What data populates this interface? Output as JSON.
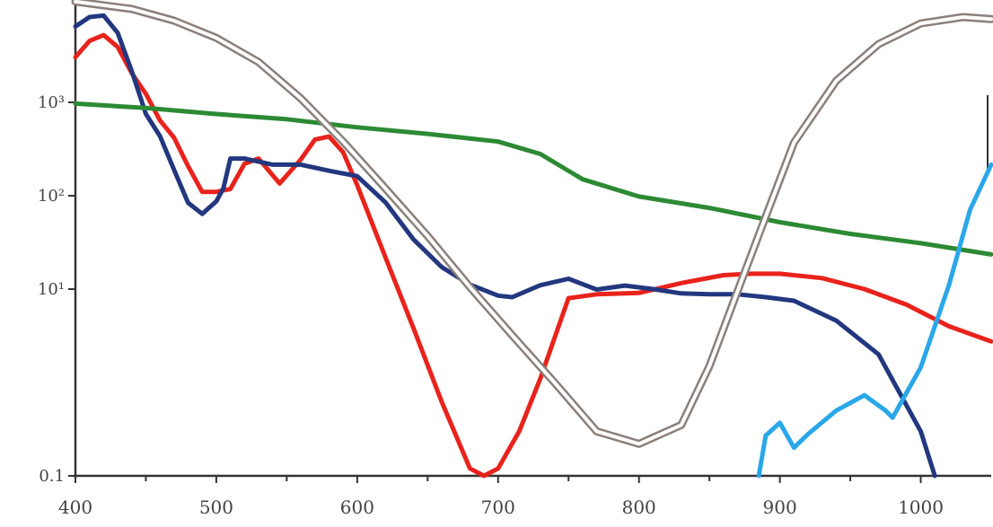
{
  "chart_data": {
    "type": "line",
    "title": "",
    "xlabel": "",
    "ylabel": "",
    "x_scale": "linear",
    "y_scale": "log",
    "xlim": [
      400,
      1050
    ],
    "ylim": [
      0.1,
      10000
    ],
    "x_ticks": [
      {
        "value": 400,
        "label": "400"
      },
      {
        "value": 500,
        "label": "500"
      },
      {
        "value": 600,
        "label": "600"
      },
      {
        "value": 700,
        "label": "700"
      },
      {
        "value": 800,
        "label": "800"
      },
      {
        "value": 900,
        "label": "900"
      },
      {
        "value": 1000,
        "label": "1000"
      }
    ],
    "y_ticks": [
      {
        "value": 0.1,
        "label": "0.1"
      },
      {
        "value": 10,
        "label": "10¹"
      },
      {
        "value": 100,
        "label": "10²"
      },
      {
        "value": 1000,
        "label": "10³"
      }
    ],
    "grid": false,
    "legend": "none",
    "series": [
      {
        "color": "#e8231c",
        "style": "solid",
        "points": [
          [
            400,
            3050
          ],
          [
            410,
            4550
          ],
          [
            420,
            5250
          ],
          [
            430,
            3920
          ],
          [
            440,
            2050
          ],
          [
            450,
            1230
          ],
          [
            460,
            640
          ],
          [
            470,
            420
          ],
          [
            480,
            207
          ],
          [
            490,
            110
          ],
          [
            500,
            110
          ],
          [
            510,
            118
          ],
          [
            520,
            220
          ],
          [
            530,
            250
          ],
          [
            545,
            135
          ],
          [
            560,
            245
          ],
          [
            570,
            400
          ],
          [
            580,
            430
          ],
          [
            590,
            292
          ],
          [
            600,
            130
          ],
          [
            620,
            22
          ],
          [
            640,
            3.8
          ],
          [
            660,
            0.62
          ],
          [
            680,
            0.12
          ],
          [
            690,
            0.1
          ],
          [
            700,
            0.12
          ],
          [
            715,
            0.3
          ],
          [
            730,
            1.1
          ],
          [
            750,
            8.0
          ],
          [
            770,
            8.8
          ],
          [
            800,
            9.1
          ],
          [
            830,
            11.6
          ],
          [
            860,
            14.1
          ],
          [
            880,
            14.6
          ],
          [
            900,
            14.6
          ],
          [
            930,
            13.1
          ],
          [
            960,
            10.0
          ],
          [
            990,
            6.8
          ],
          [
            1020,
            4.0
          ],
          [
            1050,
            2.75
          ]
        ]
      },
      {
        "color": "#23377f",
        "style": "solid",
        "points": [
          [
            400,
            6500
          ],
          [
            410,
            8200
          ],
          [
            420,
            8500
          ],
          [
            430,
            5550
          ],
          [
            440,
            2150
          ],
          [
            450,
            750
          ],
          [
            460,
            435
          ],
          [
            470,
            190
          ],
          [
            480,
            84
          ],
          [
            490,
            64
          ],
          [
            500,
            87
          ],
          [
            505,
            120
          ],
          [
            510,
            250
          ],
          [
            520,
            250
          ],
          [
            540,
            215
          ],
          [
            560,
            215
          ],
          [
            580,
            185
          ],
          [
            600,
            162
          ],
          [
            620,
            85
          ],
          [
            640,
            34
          ],
          [
            660,
            17.2
          ],
          [
            680,
            11.2
          ],
          [
            700,
            8.5
          ],
          [
            710,
            8.2
          ],
          [
            730,
            11.0
          ],
          [
            750,
            12.9
          ],
          [
            770,
            9.9
          ],
          [
            790,
            10.9
          ],
          [
            810,
            10.0
          ],
          [
            830,
            9.0
          ],
          [
            850,
            8.8
          ],
          [
            870,
            8.8
          ],
          [
            890,
            8.2
          ],
          [
            910,
            7.5
          ],
          [
            940,
            4.6
          ],
          [
            970,
            2.0
          ],
          [
            1000,
            0.3
          ],
          [
            1010,
            0.1
          ]
        ]
      },
      {
        "color": "#2c8a34",
        "style": "solid",
        "points": [
          [
            400,
            970
          ],
          [
            450,
            870
          ],
          [
            500,
            750
          ],
          [
            550,
            660
          ],
          [
            600,
            540
          ],
          [
            650,
            460
          ],
          [
            700,
            380
          ],
          [
            730,
            280
          ],
          [
            760,
            150
          ],
          [
            800,
            98
          ],
          [
            850,
            74
          ],
          [
            900,
            52
          ],
          [
            950,
            39
          ],
          [
            1000,
            31
          ],
          [
            1050,
            23.5
          ]
        ]
      },
      {
        "color": "#2aa7e9",
        "style": "solid",
        "points": [
          [
            885,
            0.1
          ],
          [
            890,
            0.27
          ],
          [
            900,
            0.37
          ],
          [
            910,
            0.2
          ],
          [
            920,
            0.28
          ],
          [
            940,
            0.5
          ],
          [
            960,
            0.73
          ],
          [
            975,
            0.5
          ],
          [
            980,
            0.42
          ],
          [
            1000,
            1.45
          ],
          [
            1020,
            11.0
          ],
          [
            1035,
            71
          ],
          [
            1050,
            215
          ]
        ]
      },
      {
        "color": "#8a807c",
        "style": "double",
        "points": [
          [
            400,
            12000
          ],
          [
            440,
            10000
          ],
          [
            470,
            7500
          ],
          [
            500,
            4900
          ],
          [
            530,
            2700
          ],
          [
            560,
            1100
          ],
          [
            590,
            380
          ],
          [
            620,
            120
          ],
          [
            650,
            37
          ],
          [
            680,
            10.5
          ],
          [
            710,
            3.2
          ],
          [
            740,
            1.0
          ],
          [
            770,
            0.3
          ],
          [
            800,
            0.22
          ],
          [
            830,
            0.35
          ],
          [
            850,
            1.5
          ],
          [
            870,
            9.5
          ],
          [
            890,
            60
          ],
          [
            910,
            370
          ],
          [
            940,
            1700
          ],
          [
            970,
            4200
          ],
          [
            1000,
            7000
          ],
          [
            1030,
            8200
          ],
          [
            1050,
            7800
          ]
        ]
      }
    ]
  }
}
